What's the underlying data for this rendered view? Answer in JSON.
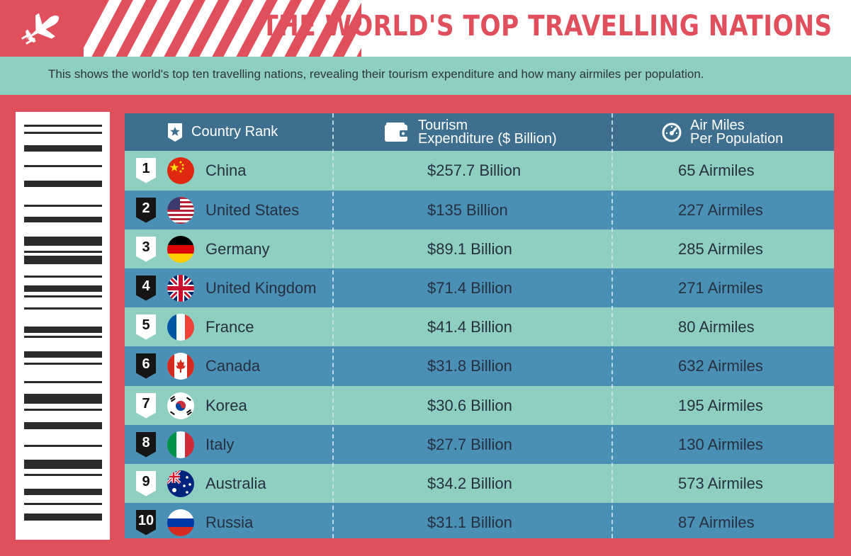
{
  "header": {
    "title": "THE WORLD'S TOP TRAVELLING NATIONS",
    "subtitle": "This shows the world's top ten travelling nations, revealing their tourism expenditure and how many airmiles per population.",
    "logo_icon": "airplane-icon",
    "accent_color": "#e04f5c",
    "band_color": "#8ecfc2"
  },
  "table": {
    "columns": [
      {
        "icon": "star-badge-icon",
        "line1": "Country Rank",
        "line2": ""
      },
      {
        "icon": "wallet-icon",
        "line1": "Tourism",
        "line2": "Expenditure ($ Billion)"
      },
      {
        "icon": "gauge-icon",
        "line1": "Air Miles",
        "line2": "Per Population"
      }
    ],
    "header_color": "#3f6f8f",
    "row_colors": [
      "#8ecfc2",
      "#4a8fb4"
    ],
    "rows": [
      {
        "rank": "1",
        "country": "China",
        "flag": "china-flag-icon",
        "expenditure": "$257.7 Billion",
        "airmiles": "65 Airmiles"
      },
      {
        "rank": "2",
        "country": "United States",
        "flag": "usa-flag-icon",
        "expenditure": "$135 Billion",
        "airmiles": "227 Airmiles"
      },
      {
        "rank": "3",
        "country": "Germany",
        "flag": "germany-flag-icon",
        "expenditure": "$89.1 Billion",
        "airmiles": "285 Airmiles"
      },
      {
        "rank": "4",
        "country": "United Kingdom",
        "flag": "uk-flag-icon",
        "expenditure": "$71.4 Billion",
        "airmiles": "271 Airmiles"
      },
      {
        "rank": "5",
        "country": "France",
        "flag": "france-flag-icon",
        "expenditure": "$41.4 Billion",
        "airmiles": "80 Airmiles"
      },
      {
        "rank": "6",
        "country": "Canada",
        "flag": "canada-flag-icon",
        "expenditure": "$31.8 Billion",
        "airmiles": "632 Airmiles"
      },
      {
        "rank": "7",
        "country": "Korea",
        "flag": "korea-flag-icon",
        "expenditure": "$30.6 Billion",
        "airmiles": "195 Airmiles"
      },
      {
        "rank": "8",
        "country": "Italy",
        "flag": "italy-flag-icon",
        "expenditure": "$27.7 Billion",
        "airmiles": "130 Airmiles"
      },
      {
        "rank": "9",
        "country": "Australia",
        "flag": "australia-flag-icon",
        "expenditure": "$34.2 Billion",
        "airmiles": "573 Airmiles"
      },
      {
        "rank": "10",
        "country": "Russia",
        "flag": "russia-flag-icon",
        "expenditure": "$31.1 Billion",
        "airmiles": "87 Airmiles"
      }
    ]
  }
}
